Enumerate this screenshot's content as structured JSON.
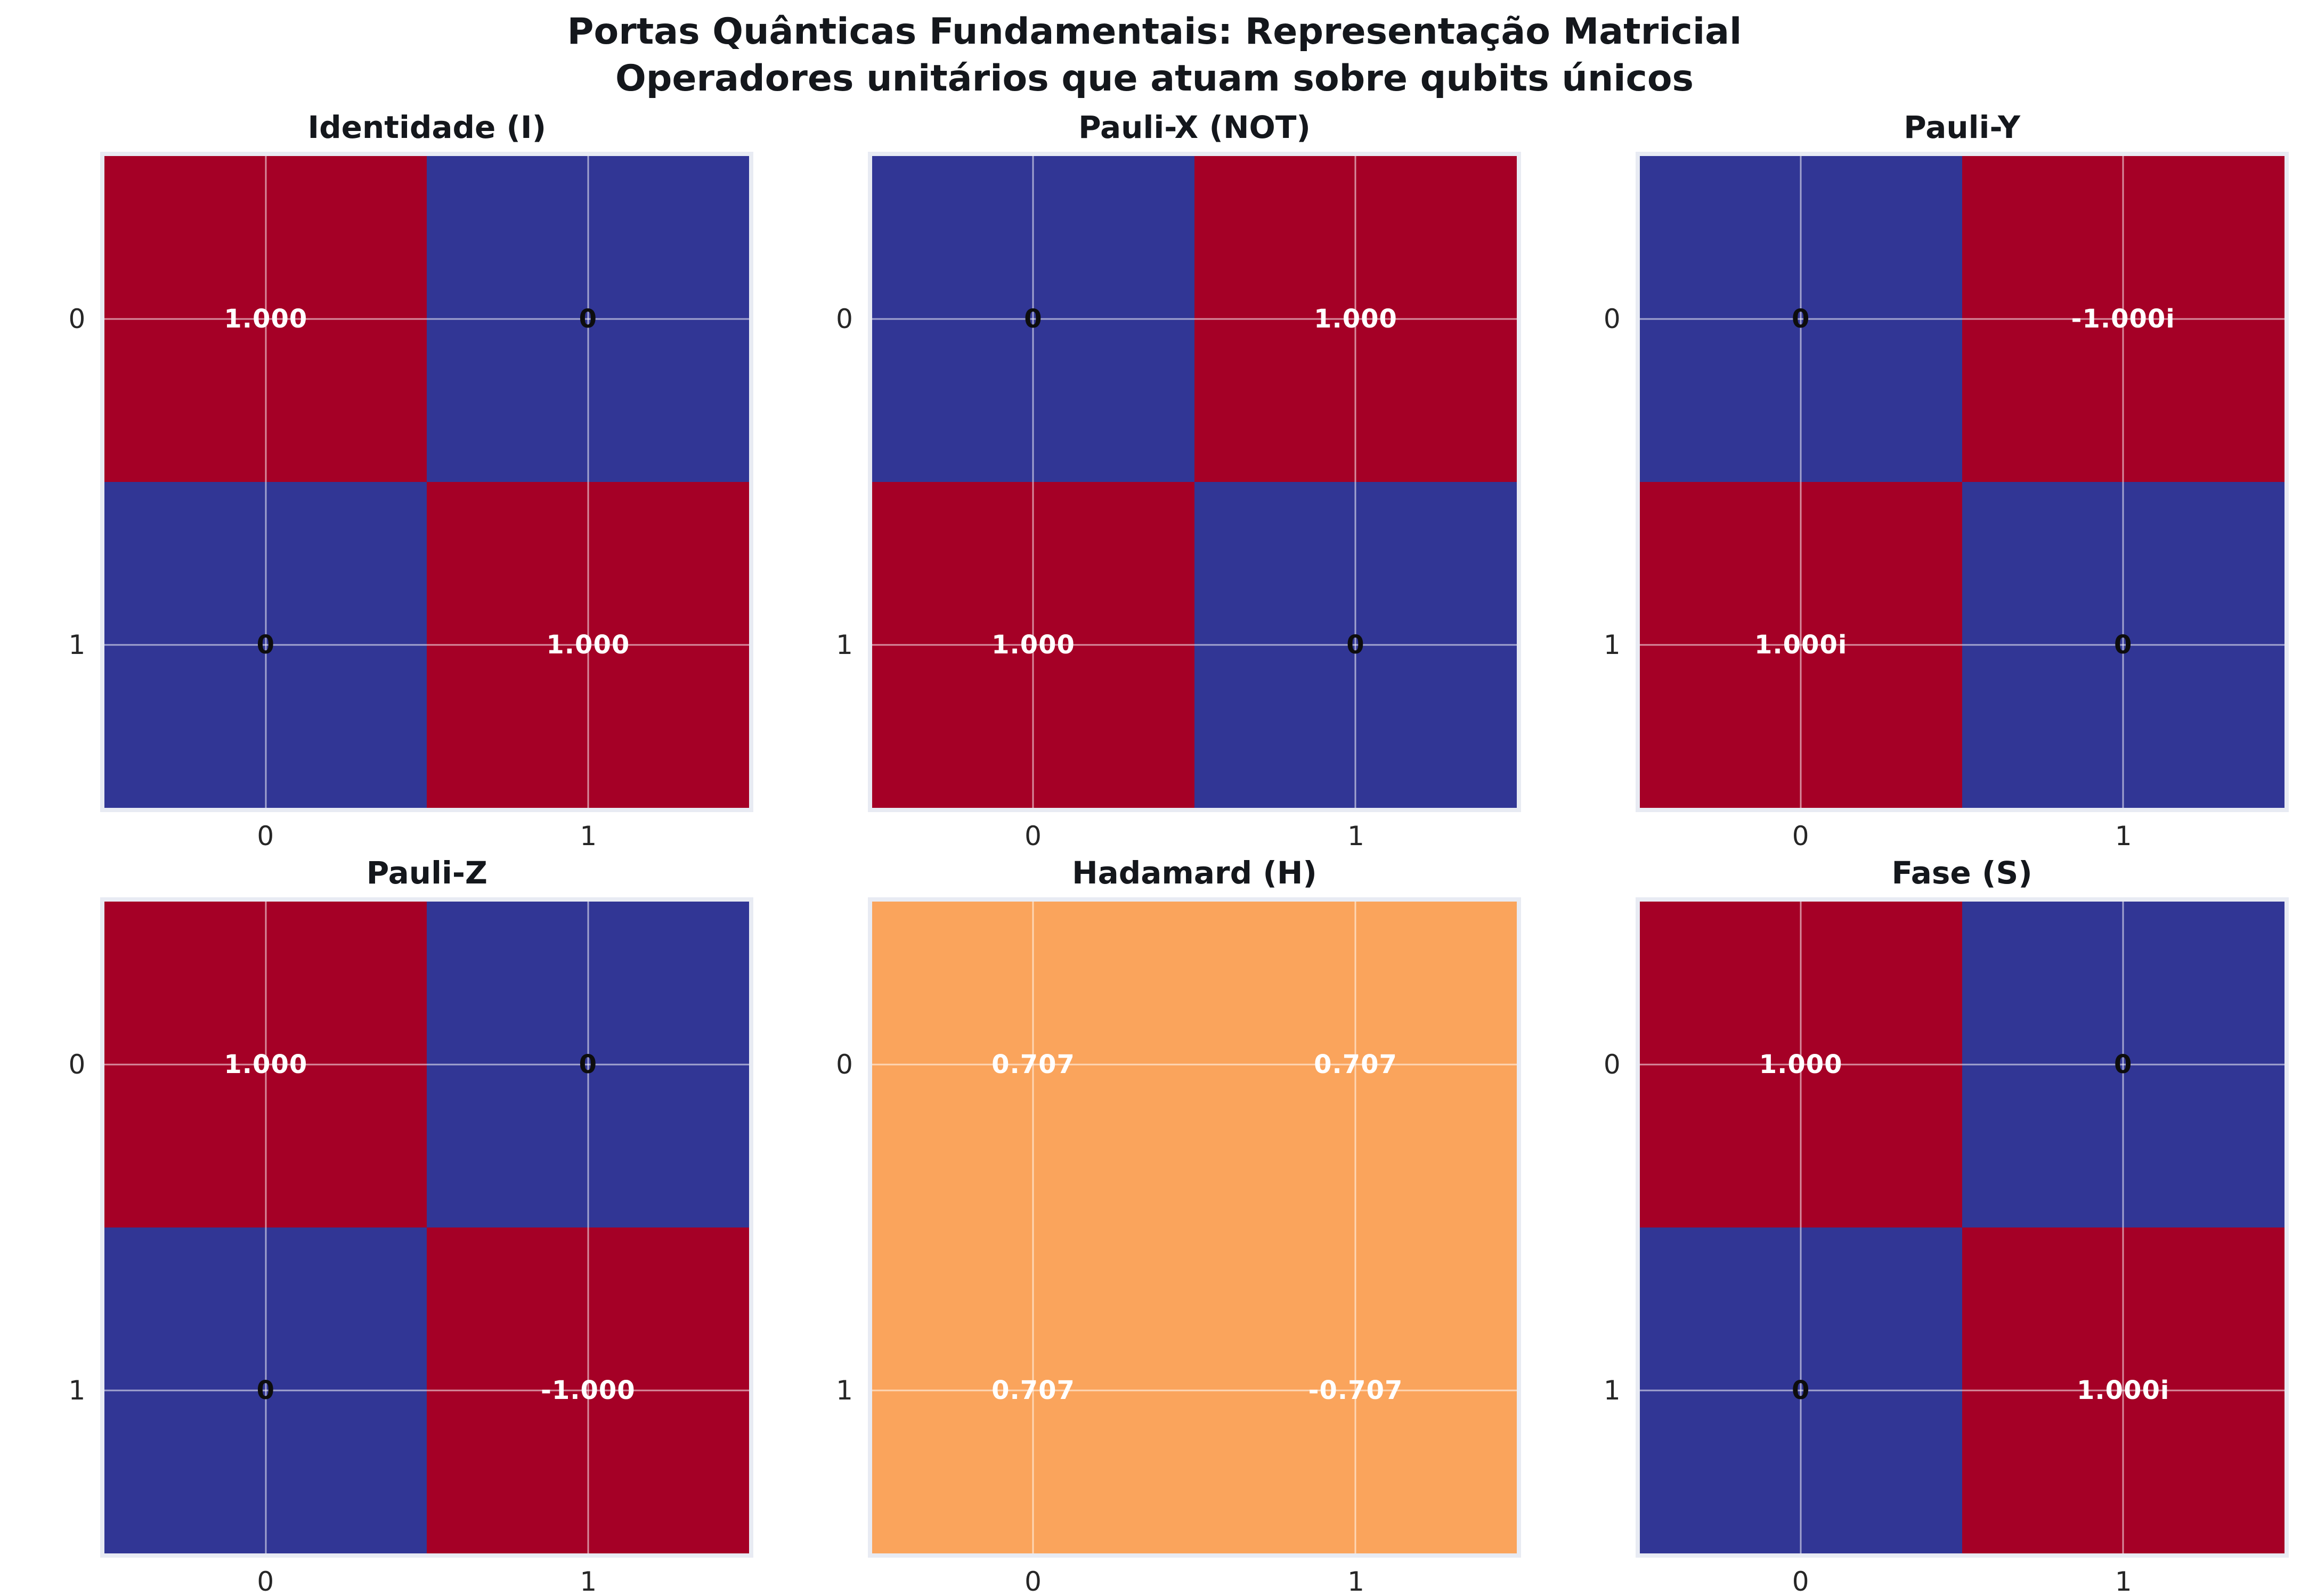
{
  "figure": {
    "title_line1": "Portas Quânticas Fundamentais: Representação Matricial",
    "title_line2": "Operadores unitários que atuam sobre qubits únicos"
  },
  "colors": {
    "magnitude_1": "#a50026",
    "magnitude_0707": "#faa45c",
    "magnitude_0": "#313695",
    "axes_background": "#e8ebf3",
    "gridline": "rgba(255,255,255,0.55)",
    "annotation_nonzero": "#ffffff",
    "annotation_zero": "#0d0d0d",
    "tick_text": "#262626",
    "title_text": "#14171c"
  },
  "chart_data": [
    {
      "type": "heatmap",
      "title": "Identidade (I)",
      "x_ticks": [
        "0",
        "1"
      ],
      "y_ticks": [
        "0",
        "1"
      ],
      "grid": true,
      "cells": [
        [
          {
            "label": "1.000",
            "value": 1.0,
            "magnitude": 1.0,
            "color": "#a50026",
            "text_color": "#ffffff"
          },
          {
            "label": "0",
            "value": 0.0,
            "magnitude": 0.0,
            "color": "#313695",
            "text_color": "#0d0d0d"
          }
        ],
        [
          {
            "label": "0",
            "value": 0.0,
            "magnitude": 0.0,
            "color": "#313695",
            "text_color": "#0d0d0d"
          },
          {
            "label": "1.000",
            "value": 1.0,
            "magnitude": 1.0,
            "color": "#a50026",
            "text_color": "#ffffff"
          }
        ]
      ]
    },
    {
      "type": "heatmap",
      "title": "Pauli-X (NOT)",
      "x_ticks": [
        "0",
        "1"
      ],
      "y_ticks": [
        "0",
        "1"
      ],
      "grid": true,
      "cells": [
        [
          {
            "label": "0",
            "value": 0.0,
            "magnitude": 0.0,
            "color": "#313695",
            "text_color": "#0d0d0d"
          },
          {
            "label": "1.000",
            "value": 1.0,
            "magnitude": 1.0,
            "color": "#a50026",
            "text_color": "#ffffff"
          }
        ],
        [
          {
            "label": "1.000",
            "value": 1.0,
            "magnitude": 1.0,
            "color": "#a50026",
            "text_color": "#ffffff"
          },
          {
            "label": "0",
            "value": 0.0,
            "magnitude": 0.0,
            "color": "#313695",
            "text_color": "#0d0d0d"
          }
        ]
      ]
    },
    {
      "type": "heatmap",
      "title": "Pauli-Y",
      "x_ticks": [
        "0",
        "1"
      ],
      "y_ticks": [
        "0",
        "1"
      ],
      "grid": true,
      "cells": [
        [
          {
            "label": "0",
            "value": "0",
            "magnitude": 0.0,
            "color": "#313695",
            "text_color": "#0d0d0d"
          },
          {
            "label": "-1.000i",
            "value": "-1.000i",
            "magnitude": 1.0,
            "color": "#a50026",
            "text_color": "#ffffff"
          }
        ],
        [
          {
            "label": "1.000i",
            "value": "1.000i",
            "magnitude": 1.0,
            "color": "#a50026",
            "text_color": "#ffffff"
          },
          {
            "label": "0",
            "value": "0",
            "magnitude": 0.0,
            "color": "#313695",
            "text_color": "#0d0d0d"
          }
        ]
      ]
    },
    {
      "type": "heatmap",
      "title": "Pauli-Z",
      "x_ticks": [
        "0",
        "1"
      ],
      "y_ticks": [
        "0",
        "1"
      ],
      "grid": true,
      "cells": [
        [
          {
            "label": "1.000",
            "value": 1.0,
            "magnitude": 1.0,
            "color": "#a50026",
            "text_color": "#ffffff"
          },
          {
            "label": "0",
            "value": 0.0,
            "magnitude": 0.0,
            "color": "#313695",
            "text_color": "#0d0d0d"
          }
        ],
        [
          {
            "label": "0",
            "value": 0.0,
            "magnitude": 0.0,
            "color": "#313695",
            "text_color": "#0d0d0d"
          },
          {
            "label": "-1.000",
            "value": -1.0,
            "magnitude": 1.0,
            "color": "#a50026",
            "text_color": "#ffffff"
          }
        ]
      ]
    },
    {
      "type": "heatmap",
      "title": "Hadamard (H)",
      "x_ticks": [
        "0",
        "1"
      ],
      "y_ticks": [
        "0",
        "1"
      ],
      "grid": true,
      "cells": [
        [
          {
            "label": "0.707",
            "value": 0.707,
            "magnitude": 0.707,
            "color": "#faa45c",
            "text_color": "#ffffff"
          },
          {
            "label": "0.707",
            "value": 0.707,
            "magnitude": 0.707,
            "color": "#faa45c",
            "text_color": "#ffffff"
          }
        ],
        [
          {
            "label": "0.707",
            "value": 0.707,
            "magnitude": 0.707,
            "color": "#faa45c",
            "text_color": "#ffffff"
          },
          {
            "label": "-0.707",
            "value": -0.707,
            "magnitude": 0.707,
            "color": "#faa45c",
            "text_color": "#ffffff"
          }
        ]
      ]
    },
    {
      "type": "heatmap",
      "title": "Fase (S)",
      "x_ticks": [
        "0",
        "1"
      ],
      "y_ticks": [
        "0",
        "1"
      ],
      "grid": true,
      "cells": [
        [
          {
            "label": "1.000",
            "value": 1.0,
            "magnitude": 1.0,
            "color": "#a50026",
            "text_color": "#ffffff"
          },
          {
            "label": "0",
            "value": 0.0,
            "magnitude": 0.0,
            "color": "#313695",
            "text_color": "#0d0d0d"
          }
        ],
        [
          {
            "label": "0",
            "value": 0.0,
            "magnitude": 0.0,
            "color": "#313695",
            "text_color": "#0d0d0d"
          },
          {
            "label": "1.000i",
            "value": "1.000i",
            "magnitude": 1.0,
            "color": "#a50026",
            "text_color": "#ffffff"
          }
        ]
      ]
    }
  ]
}
